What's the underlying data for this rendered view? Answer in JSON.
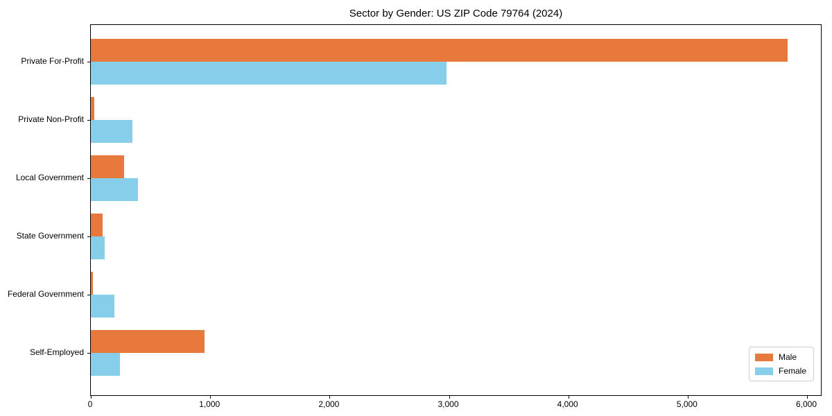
{
  "title": "Sector by Gender: US ZIP Code 79764 (2024)",
  "chart_data": {
    "type": "bar",
    "orientation": "horizontal",
    "title": "Sector by Gender: US ZIP Code 79764 (2024)",
    "categories": [
      "Private For-Profit",
      "Private Non-Profit",
      "Local Government",
      "State Government",
      "Federal Government",
      "Self-Employed"
    ],
    "series": [
      {
        "name": "Male",
        "color": "#e8793d",
        "values": [
          5840,
          30,
          280,
          100,
          18,
          950
        ]
      },
      {
        "name": "Female",
        "color": "#87ceeb",
        "values": [
          2980,
          350,
          395,
          115,
          200,
          245
        ]
      }
    ],
    "xlabel": "",
    "ylabel": "",
    "xlim": [
      0,
      6000
    ],
    "xticks": [
      0,
      1000,
      2000,
      3000,
      4000,
      5000,
      6000
    ],
    "xtick_labels": [
      "0",
      "1,000",
      "2,000",
      "3,000",
      "4,000",
      "5,000",
      "6,000"
    ],
    "grid": false,
    "legend_position": "lower right",
    "background_color": "#ffffff"
  }
}
